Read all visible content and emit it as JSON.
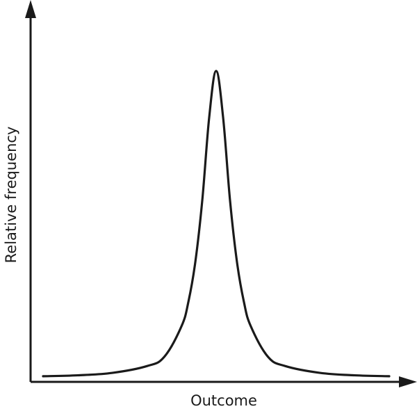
{
  "chart_data": {
    "type": "line",
    "title": "",
    "xlabel": "Outcome",
    "ylabel": "Relative frequency",
    "grid": false,
    "legend": "none",
    "x_ticks": [],
    "y_ticks": [],
    "xlim": [
      0,
      1
    ],
    "ylim": [
      0,
      1
    ],
    "series": [
      {
        "color": "#1a1a1a",
        "x": [
          0.0,
          0.1,
          0.2,
          0.3,
          0.35,
          0.4,
          0.42,
          0.44,
          0.46,
          0.48,
          0.5,
          0.52,
          0.54,
          0.56,
          0.58,
          0.6,
          0.65,
          0.7,
          0.8,
          0.9,
          1.0
        ],
        "y": [
          0.007,
          0.01,
          0.018,
          0.04,
          0.07,
          0.17,
          0.25,
          0.38,
          0.58,
          0.85,
          1.0,
          0.85,
          0.58,
          0.38,
          0.25,
          0.17,
          0.07,
          0.04,
          0.018,
          0.01,
          0.007
        ]
      }
    ]
  }
}
